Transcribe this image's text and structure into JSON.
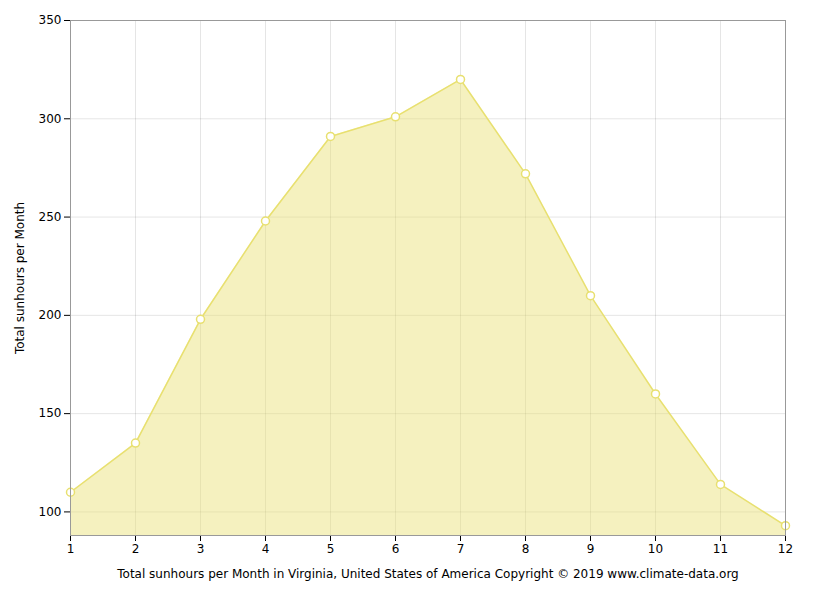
{
  "chart_data": {
    "type": "area",
    "x": [
      1,
      2,
      3,
      4,
      5,
      6,
      7,
      8,
      9,
      10,
      11,
      12
    ],
    "values": [
      110,
      135,
      198,
      248,
      291,
      301,
      320,
      272,
      210,
      160,
      114,
      93
    ],
    "color": "#E8E070",
    "marker": "circle",
    "xlabel": "Total sunhours per Month in Virginia, United States of America Copyright © 2019 www.climate-data.org",
    "ylabel": "Total sunhours per Month",
    "xlim": [
      1,
      12
    ],
    "ylim": [
      88,
      350
    ],
    "xticks": [
      1,
      2,
      3,
      4,
      5,
      6,
      7,
      8,
      9,
      10,
      11,
      12
    ],
    "yticks": [
      100,
      150,
      200,
      250,
      300,
      350
    ],
    "grid": true
  }
}
